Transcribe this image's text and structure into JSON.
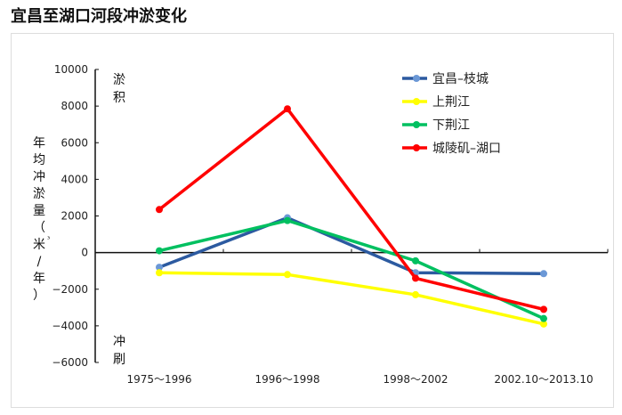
{
  "chart_data": {
    "type": "line",
    "title": "宜昌至湖口河段冲淤变化",
    "ylabel": "年均冲淤量（米³/年）",
    "xlabel": "",
    "categories": [
      "1975～1996",
      "1996～1998",
      "1998～2002",
      "2002.10～2013.10"
    ],
    "ylim": [
      -6000,
      10000
    ],
    "yticks": [
      10000,
      8000,
      6000,
      4000,
      2000,
      0,
      -2000,
      -4000,
      -6000
    ],
    "grid": false,
    "legend": "top-right",
    "annotations": {
      "top": "淤积",
      "bottom": "冲刷"
    },
    "series": [
      {
        "name": "宜昌–枝城",
        "color": "#2c5aa0",
        "marker": "#6b98d6",
        "values": [
          -800,
          1900,
          -1100,
          -1150
        ]
      },
      {
        "name": "上荆江",
        "color": "#ffff00",
        "marker": "#ffff00",
        "values": [
          -1100,
          -1200,
          -2300,
          -3900
        ]
      },
      {
        "name": "下荆江",
        "color": "#00c060",
        "marker": "#00c060",
        "values": [
          100,
          1750,
          -450,
          -3600
        ]
      },
      {
        "name": "城陵矶–湖口",
        "color": "#ff0000",
        "marker": "#ff0000",
        "values": [
          2350,
          7850,
          -1400,
          -3100
        ]
      }
    ]
  }
}
